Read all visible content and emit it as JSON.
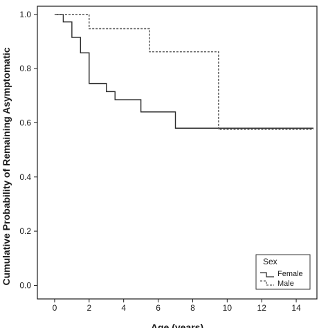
{
  "chart_data": {
    "type": "line",
    "chart_subtype": "step",
    "xlabel": "Age (years)",
    "ylabel": "Cumulative Probability of Remaining Asymptomatic",
    "xlim": [
      -1,
      15.2
    ],
    "ylim": [
      -0.05,
      1.03
    ],
    "x_ticks": [
      0,
      2,
      4,
      6,
      8,
      10,
      12,
      14
    ],
    "y_ticks": [
      0.0,
      0.2,
      0.4,
      0.6,
      0.8,
      1.0
    ],
    "y_tick_labels": [
      "0.0",
      "0.2",
      "0.4",
      "0.6",
      "0.8",
      "1.0"
    ],
    "grid": false,
    "legend": {
      "title": "Sex",
      "position": "bottom-right"
    },
    "series": [
      {
        "name": "Female",
        "style": "solid",
        "color": "#2b2b2b",
        "steps": [
          [
            0,
            1.0
          ],
          [
            0.5,
            0.972
          ],
          [
            1.0,
            0.915
          ],
          [
            1.5,
            0.858
          ],
          [
            2.0,
            0.745
          ],
          [
            3.0,
            0.715
          ],
          [
            3.5,
            0.685
          ],
          [
            5.0,
            0.64
          ],
          [
            7.0,
            0.58
          ],
          [
            15.0,
            0.58
          ]
        ]
      },
      {
        "name": "Male",
        "style": "dashed",
        "color": "#555555",
        "steps": [
          [
            0,
            1.0
          ],
          [
            2.0,
            0.947
          ],
          [
            5.5,
            0.862
          ],
          [
            9.5,
            0.575
          ],
          [
            15.0,
            0.575
          ]
        ]
      }
    ]
  }
}
